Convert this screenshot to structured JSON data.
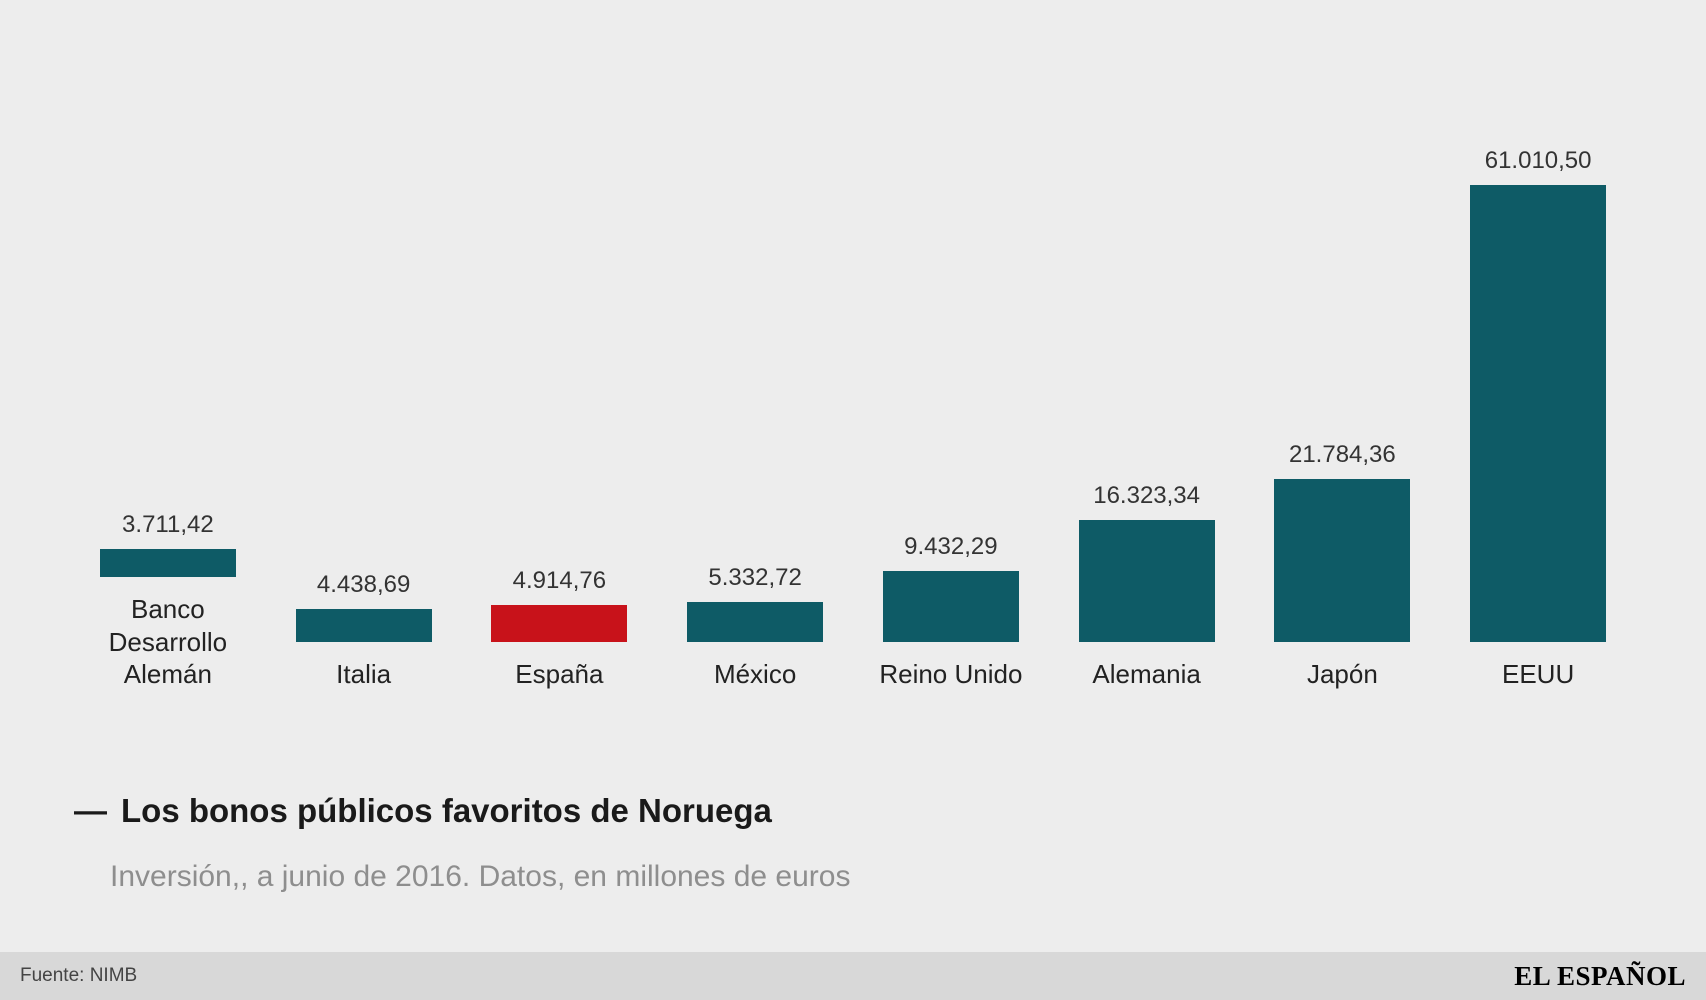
{
  "colors": {
    "background": "#ededed",
    "bar": "#0e5b66",
    "highlight": "#c8121a",
    "footer_bg": "#d8d8d8"
  },
  "chart_data": {
    "type": "bar",
    "title": "Los bonos públicos favoritos de Noruega",
    "subtitle": "Inversión,, a junio de 2016. Datos, en millones de euros",
    "categories": [
      "Banco Desarrollo Alemán",
      "Italia",
      "España",
      "México",
      "Reino Unido",
      "Alemania",
      "Japón",
      "EEUU"
    ],
    "values": [
      3711.42,
      4438.69,
      4914.76,
      5332.72,
      9432.29,
      16323.34,
      21784.36,
      61010.5
    ],
    "value_labels": [
      "3.711,42",
      "4.438,69",
      "4.914,76",
      "5.332,72",
      "9.432,29",
      "16.323,34",
      "21.784,36",
      "61.010,50"
    ],
    "highlight_index": 2,
    "highlight_category": "España",
    "ylim": [
      0,
      61010.5
    ],
    "grid": false,
    "legend": "none",
    "xlabel": "",
    "ylabel": ""
  },
  "caption": {
    "dash": "—",
    "title": "Los bonos públicos favoritos de Noruega",
    "subtitle": "Inversión,, a junio de 2016. Datos, en millones de euros"
  },
  "footer": {
    "source": "Fuente: NIMB",
    "brand": "EL ESPAÑOL"
  }
}
